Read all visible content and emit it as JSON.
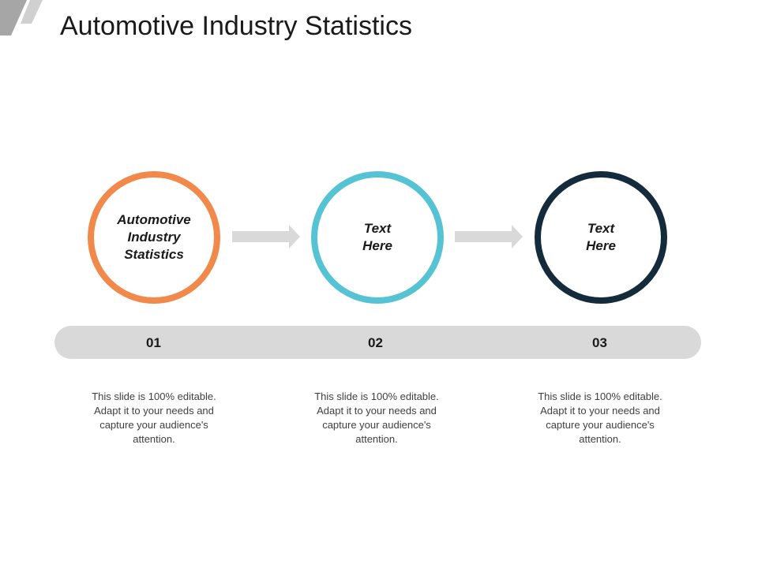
{
  "title": "Automotive Industry Statistics",
  "colors": {
    "step1": "#f0894a",
    "step2": "#55c3d3",
    "step3": "#142b3c",
    "bar": "#d9d9d9",
    "arrow": "#d9d9d9"
  },
  "steps": [
    {
      "label": "Automotive\nIndustry\nStatistics",
      "number": "01",
      "description": "This slide is 100% editable. Adapt it to your needs and capture your audience's attention."
    },
    {
      "label": "Text\nHere",
      "number": "02",
      "description": "This slide is 100% editable. Adapt it to your needs and capture your audience's attention."
    },
    {
      "label": "Text\nHere",
      "number": "03",
      "description": "This slide is 100% editable. Adapt it to your needs and capture your audience's attention."
    }
  ]
}
